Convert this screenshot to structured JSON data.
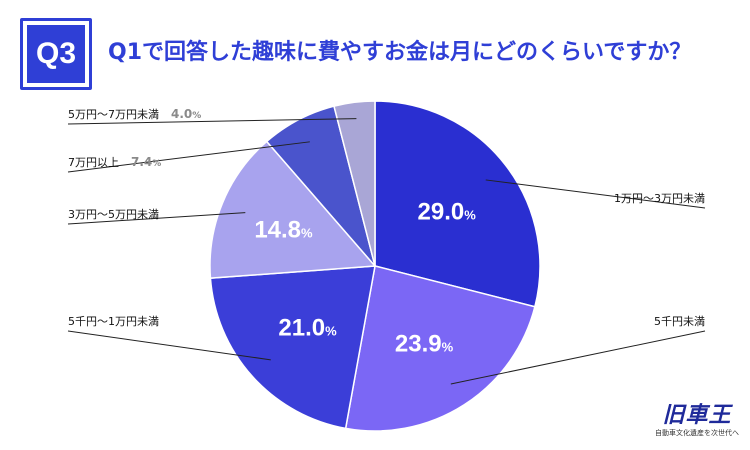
{
  "question": {
    "badge": "Q3",
    "title": "Q1で回答した趣味に費やすお金は月にどのくらいですか？"
  },
  "brand": {
    "logo": "旧車王",
    "tagline": "自動車文化遺産を次世代へ"
  },
  "colors": {
    "accent": "#2f3fd6"
  },
  "chart_data": {
    "type": "pie",
    "unit": "%",
    "start_angle_deg": 0,
    "direction": "clockwise",
    "slices": [
      {
        "label": "1万円〜3万円未満",
        "value": 29.0,
        "color": "#2a2fd1"
      },
      {
        "label": "5千円未満",
        "value": 23.9,
        "color": "#7b67f5"
      },
      {
        "label": "5千円〜1万円未満",
        "value": 21.0,
        "color": "#3b3ed8"
      },
      {
        "label": "3万円〜5万円未満",
        "value": 14.8,
        "color": "#a8a3ee"
      },
      {
        "label": "7万円以上",
        "value": 7.4,
        "color": "#4a54cc"
      },
      {
        "label": "5万円〜7万円未満",
        "value": 4.0,
        "color": "#a9a6d6"
      }
    ],
    "value_labels": [
      "29.0",
      "23.9",
      "21.0",
      "14.8",
      "7.4",
      "4.0"
    ]
  }
}
